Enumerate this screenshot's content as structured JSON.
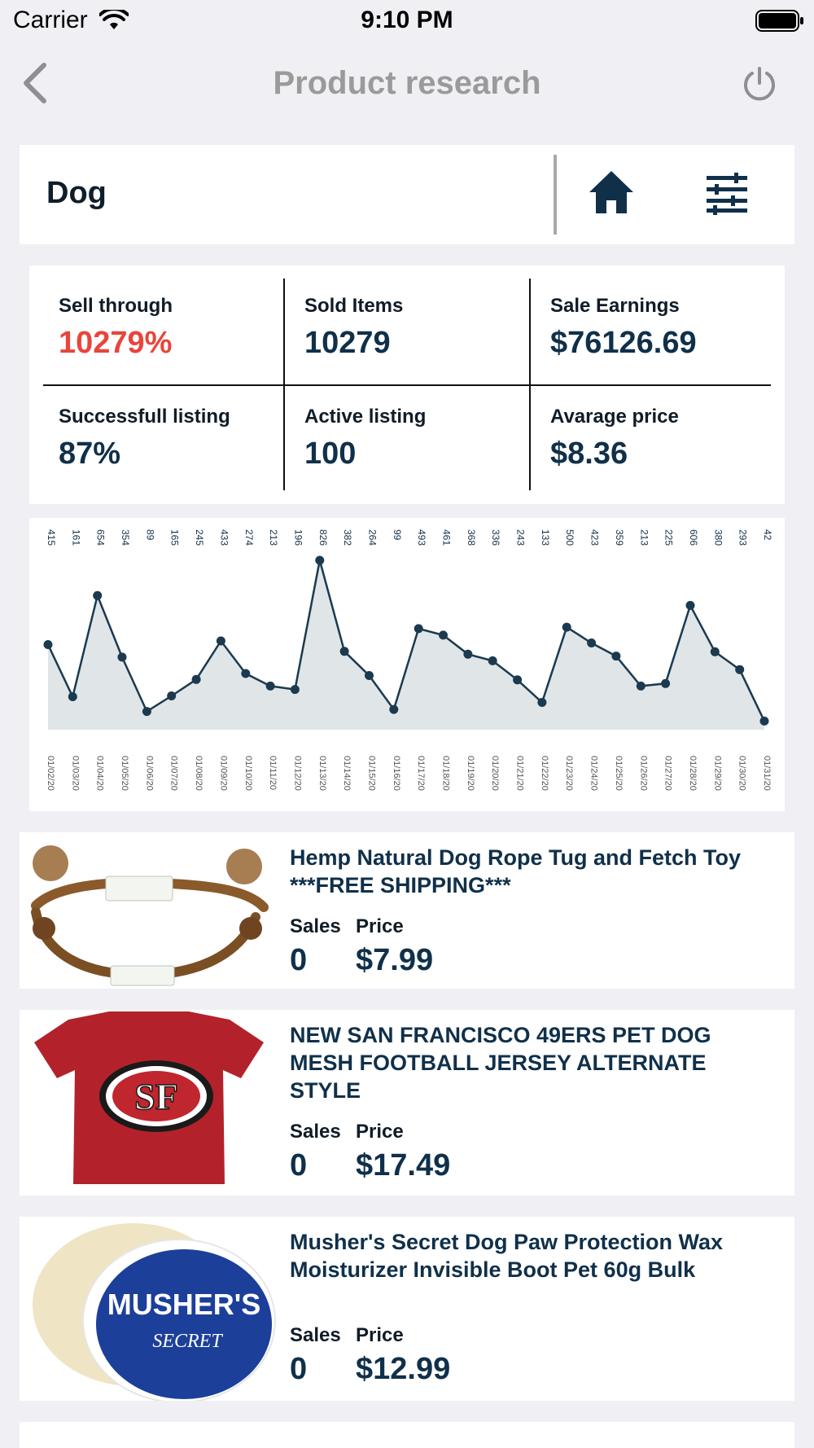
{
  "status_bar": {
    "carrier": "Carrier",
    "time": "9:10 PM"
  },
  "nav": {
    "title": "Product research",
    "icons": [
      "chevron-left-icon",
      "power-icon"
    ]
  },
  "search": {
    "value": "Dog",
    "icons": [
      "home-icon",
      "sliders-icon"
    ]
  },
  "stats": [
    {
      "label": "Sell through",
      "value": "10279%",
      "color": "#e8453c"
    },
    {
      "label": "Sold Items",
      "value": "10279"
    },
    {
      "label": "Sale Earnings",
      "value": "$76126.69"
    },
    {
      "label": "Successfull listing",
      "value": "87%"
    },
    {
      "label": "Active listing",
      "value": "100"
    },
    {
      "label": "Avarage price",
      "value": "$8.36"
    }
  ],
  "chart_data": {
    "type": "area",
    "x": [
      "01/02/20",
      "01/03/20",
      "01/04/20",
      "01/05/20",
      "01/06/20",
      "01/07/20",
      "01/08/20",
      "01/09/20",
      "01/10/20",
      "01/11/20",
      "01/12/20",
      "01/13/20",
      "01/14/20",
      "01/15/20",
      "01/16/20",
      "01/17/20",
      "01/18/20",
      "01/19/20",
      "01/20/20",
      "01/21/20",
      "01/22/20",
      "01/23/20",
      "01/24/20",
      "01/25/20",
      "01/26/20",
      "01/27/20",
      "01/28/20",
      "01/29/20",
      "01/30/20",
      "01/31/20"
    ],
    "values": [
      415,
      161,
      654,
      354,
      89,
      165,
      245,
      433,
      274,
      213,
      196,
      826,
      382,
      264,
      99,
      493,
      461,
      368,
      336,
      243,
      133,
      500,
      423,
      359,
      213,
      225,
      606,
      380,
      293,
      42
    ],
    "colors": {
      "line": "#1b3a4f",
      "fill": "#e0e5e8",
      "point": "#1b3a4f"
    }
  },
  "products": [
    {
      "title_lines": [
        "Hemp Natural Dog Rope Tug and Fetch Toy",
        "***FREE SHIPPING***"
      ],
      "sales_label": "Sales",
      "price_label": "Price",
      "sales": "0",
      "price": "$7.99"
    },
    {
      "title_lines": [
        "NEW SAN FRANCISCO 49ERS PET DOG",
        "MESH FOOTBALL JERSEY ALTERNATE",
        "STYLE"
      ],
      "sales_label": "Sales",
      "price_label": "Price",
      "sales": "0",
      "price": "$17.49",
      "logo_text": "SF"
    },
    {
      "title_lines": [
        "Musher's Secret Dog Paw Protection Wax",
        "Moisturizer Invisible Boot Pet 60g Bulk"
      ],
      "sales_label": "Sales",
      "price_label": "Price",
      "sales": "0",
      "price": "$12.99",
      "logo_lines": [
        "MUSHER'S",
        "SECRET"
      ]
    }
  ]
}
